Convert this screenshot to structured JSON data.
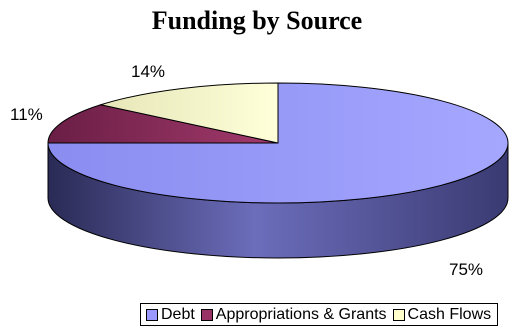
{
  "chart_data": {
    "type": "pie",
    "title": "Funding by Source",
    "style": "3d-exploded-tilt",
    "slices": [
      {
        "label": "Debt",
        "value": 75,
        "percent_label": "75%",
        "color": "#9999ff"
      },
      {
        "label": "Appropriations & Grants",
        "value": 11,
        "percent_label": "11%",
        "color": "#993366"
      },
      {
        "label": "Cash Flows",
        "value": 14,
        "percent_label": "14%",
        "color": "#ffffcc"
      }
    ],
    "legend_position": "bottom-right"
  }
}
